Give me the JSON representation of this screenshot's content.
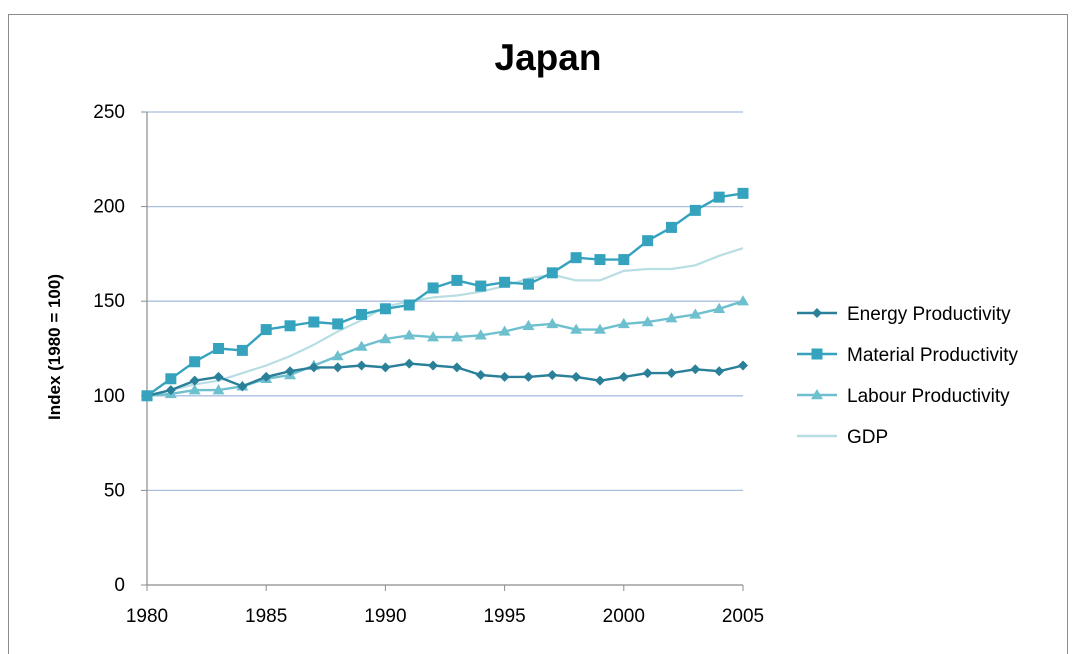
{
  "chart_data": {
    "type": "line",
    "title": "Japan",
    "xlabel": "",
    "ylabel": "Index (1980 = 100)",
    "xlim": [
      1980,
      2005
    ],
    "ylim": [
      0,
      250
    ],
    "x_ticks": [
      "1980",
      "1985",
      "1990",
      "1995",
      "2000",
      "2005"
    ],
    "y_ticks": [
      "0",
      "50",
      "100",
      "150",
      "200",
      "250"
    ],
    "grid": "horizontal",
    "legend_position": "right",
    "x": [
      1980,
      1981,
      1982,
      1983,
      1984,
      1985,
      1986,
      1987,
      1988,
      1989,
      1990,
      1991,
      1992,
      1993,
      1994,
      1995,
      1996,
      1997,
      1998,
      1999,
      2000,
      2001,
      2002,
      2003,
      2004,
      2005
    ],
    "series": [
      {
        "name": "Energy Productivity",
        "color": "#2a7f99",
        "marker": "diamond",
        "values": [
          100,
          103,
          108,
          110,
          105,
          110,
          113,
          115,
          115,
          116,
          115,
          117,
          116,
          115,
          111,
          110,
          110,
          111,
          110,
          108,
          110,
          112,
          112,
          114,
          113,
          116
        ]
      },
      {
        "name": "Material Productivity",
        "color": "#35a3bd",
        "marker": "square",
        "values": [
          100,
          109,
          118,
          125,
          124,
          135,
          137,
          139,
          138,
          143,
          146,
          148,
          157,
          161,
          158,
          160,
          159,
          165,
          173,
          172,
          172,
          182,
          189,
          198,
          205,
          207
        ]
      },
      {
        "name": "Labour Productivity",
        "color": "#6fc0cf",
        "marker": "triangle",
        "values": [
          100,
          101,
          103,
          103,
          105,
          109,
          111,
          116,
          121,
          126,
          130,
          132,
          131,
          131,
          132,
          134,
          137,
          138,
          135,
          135,
          138,
          139,
          141,
          143,
          146,
          150
        ]
      },
      {
        "name": "GDP",
        "color": "#b8dde3",
        "marker": "none",
        "values": [
          100,
          103,
          106,
          108,
          112,
          116,
          121,
          127,
          134,
          140,
          147,
          150,
          152,
          153,
          155,
          158,
          162,
          164,
          161,
          161,
          166,
          167,
          167,
          169,
          174,
          178
        ]
      }
    ]
  }
}
